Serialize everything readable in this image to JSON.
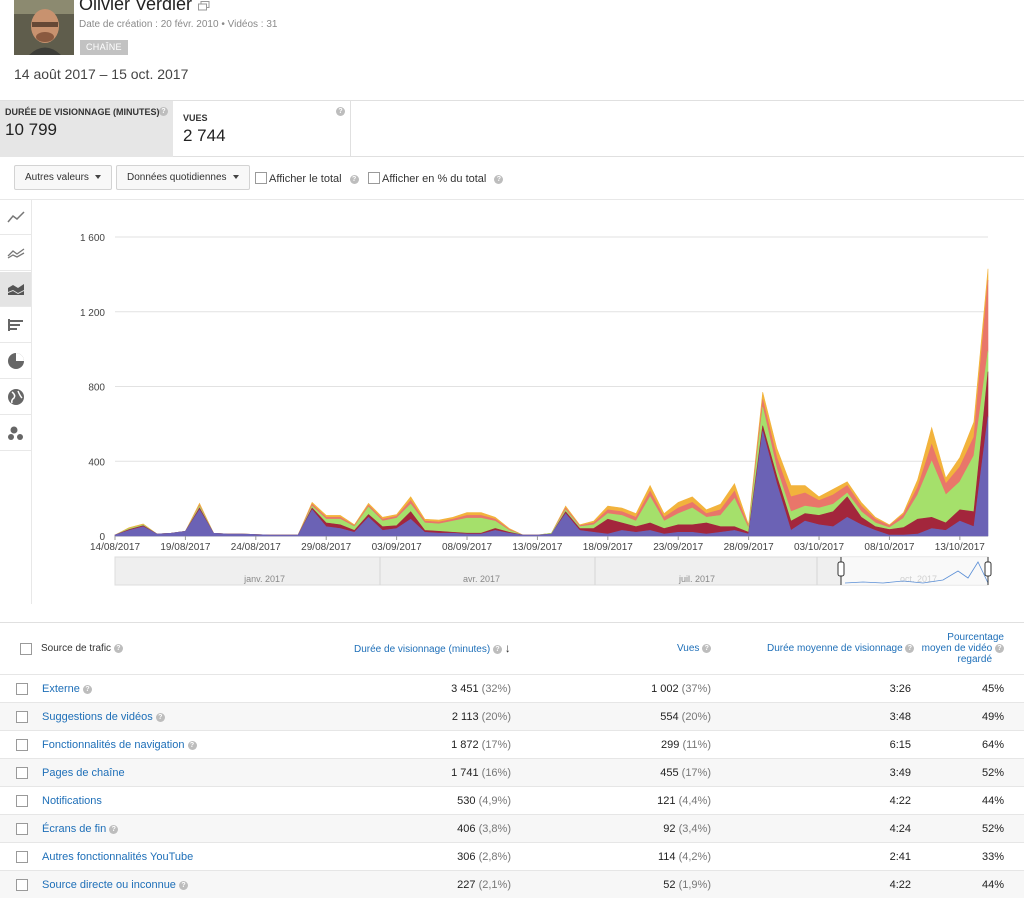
{
  "channel": {
    "name": "Olivier Verdier",
    "created": "Date de création : 20 févr. 2010",
    "videos": "Vidéos : 31",
    "badge": "CHAÎNE"
  },
  "date_range": "14 août 2017 – 15 oct. 2017",
  "metrics": [
    {
      "label": "DURÉE DE VISIONNAGE (MINUTES)",
      "value": "10 799",
      "selected": true
    },
    {
      "label": "VUES",
      "value": "2 744",
      "selected": false
    }
  ],
  "controls": {
    "other_values": "Autres valeurs",
    "daily_data": "Données quotidiennes",
    "show_total": "Afficher le total",
    "show_percent": "Afficher en % du total"
  },
  "chart_icons": [
    "line-chart-icon",
    "multiline-chart-icon",
    "stacked-area-icon",
    "bar-chart-icon",
    "pie-chart-icon",
    "map-icon",
    "bubble-chart-icon"
  ],
  "chart_data": {
    "type": "area",
    "stacked": true,
    "ylim": [
      0,
      1600
    ],
    "yticks": [
      "0",
      "400",
      "800",
      "1 200",
      "1 600"
    ],
    "xticks": [
      "14/08/2017",
      "19/08/2017",
      "24/08/2017",
      "29/08/2017",
      "03/09/2017",
      "08/09/2017",
      "13/09/2017",
      "18/09/2017",
      "23/09/2017",
      "28/09/2017",
      "03/10/2017",
      "08/10/2017",
      "13/10/2017"
    ],
    "x_start": "14/08/2017",
    "x_end": "15/10/2017",
    "colors": [
      "#6b62b5",
      "#a3263c",
      "#a5e06b",
      "#e9766a",
      "#f2b33c"
    ],
    "series": [
      {
        "values": [
          5,
          30,
          50,
          10,
          15,
          25,
          140,
          15,
          10,
          10,
          8,
          5,
          5,
          5,
          140,
          50,
          40,
          20,
          100,
          30,
          40,
          90,
          20,
          15,
          15,
          10,
          10,
          30,
          15,
          5,
          5,
          10,
          120,
          30,
          20,
          10,
          30,
          20,
          30,
          10,
          20,
          20,
          10,
          20,
          30,
          10,
          560,
          280,
          30,
          80,
          60,
          50,
          100,
          60,
          30,
          5,
          5,
          10,
          40,
          30,
          80,
          50,
          640
        ]
      },
      {
        "values": [
          0,
          5,
          5,
          0,
          0,
          0,
          10,
          0,
          0,
          0,
          0,
          0,
          0,
          0,
          10,
          20,
          20,
          10,
          15,
          20,
          15,
          40,
          10,
          10,
          5,
          5,
          5,
          10,
          5,
          0,
          0,
          0,
          10,
          10,
          20,
          80,
          40,
          30,
          40,
          30,
          40,
          40,
          60,
          30,
          20,
          10,
          30,
          40,
          50,
          40,
          50,
          80,
          110,
          40,
          20,
          30,
          40,
          80,
          60,
          40,
          60,
          80,
          240
        ]
      },
      {
        "values": [
          0,
          5,
          5,
          0,
          0,
          0,
          10,
          0,
          0,
          0,
          0,
          0,
          0,
          0,
          10,
          20,
          30,
          20,
          40,
          30,
          40,
          40,
          40,
          40,
          60,
          80,
          80,
          40,
          10,
          0,
          0,
          5,
          10,
          10,
          20,
          30,
          40,
          30,
          140,
          40,
          60,
          90,
          30,
          60,
          150,
          20,
          100,
          40,
          50,
          40,
          40,
          40,
          20,
          30,
          20,
          10,
          50,
          130,
          300,
          150,
          150,
          300,
          110
        ]
      },
      {
        "values": [
          0,
          0,
          0,
          0,
          0,
          0,
          5,
          0,
          0,
          0,
          0,
          0,
          0,
          0,
          10,
          10,
          10,
          5,
          10,
          10,
          10,
          20,
          10,
          10,
          10,
          15,
          15,
          10,
          5,
          0,
          0,
          0,
          10,
          5,
          10,
          20,
          20,
          20,
          30,
          20,
          30,
          30,
          20,
          30,
          40,
          10,
          40,
          60,
          80,
          70,
          40,
          50,
          40,
          30,
          20,
          10,
          20,
          40,
          90,
          60,
          80,
          100,
          380
        ]
      },
      {
        "values": [
          0,
          5,
          5,
          0,
          0,
          0,
          10,
          0,
          0,
          0,
          0,
          0,
          0,
          0,
          10,
          10,
          10,
          5,
          10,
          10,
          10,
          20,
          10,
          10,
          10,
          15,
          15,
          10,
          5,
          0,
          0,
          0,
          10,
          5,
          10,
          20,
          20,
          20,
          30,
          20,
          30,
          30,
          20,
          30,
          40,
          10,
          40,
          50,
          60,
          40,
          20,
          30,
          20,
          20,
          10,
          5,
          10,
          40,
          90,
          30,
          50,
          80,
          60
        ]
      }
    ],
    "navigator_labels": [
      "janv. 2017",
      "avr. 2017",
      "juil. 2017",
      "oct. 2017"
    ]
  },
  "table": {
    "headers": {
      "source": "Source de trafic",
      "watch": "Durée de visionnage (minutes)",
      "views": "Vues",
      "avg": "Durée moyenne de visionnage",
      "pct_line1": "Pourcentage",
      "pct_line2": "moyen de vidéo",
      "pct_line3": "regardé"
    },
    "rows": [
      {
        "source": "Externe",
        "help": true,
        "watch": "3 451",
        "watch_pct": "(32%)",
        "views": "1 002",
        "views_pct": "(37%)",
        "avg": "3:26",
        "pct": "45%"
      },
      {
        "source": "Suggestions de vidéos",
        "help": true,
        "watch": "2 113",
        "watch_pct": "(20%)",
        "views": "554",
        "views_pct": "(20%)",
        "avg": "3:48",
        "pct": "49%"
      },
      {
        "source": "Fonctionnalités de navigation",
        "help": true,
        "watch": "1 872",
        "watch_pct": "(17%)",
        "views": "299",
        "views_pct": "(11%)",
        "avg": "6:15",
        "pct": "64%"
      },
      {
        "source": "Pages de chaîne",
        "help": false,
        "watch": "1 741",
        "watch_pct": "(16%)",
        "views": "455",
        "views_pct": "(17%)",
        "avg": "3:49",
        "pct": "52%"
      },
      {
        "source": "Notifications",
        "help": false,
        "watch": "530",
        "watch_pct": "(4,9%)",
        "views": "121",
        "views_pct": "(4,4%)",
        "avg": "4:22",
        "pct": "44%"
      },
      {
        "source": "Écrans de fin",
        "help": true,
        "watch": "406",
        "watch_pct": "(3,8%)",
        "views": "92",
        "views_pct": "(3,4%)",
        "avg": "4:24",
        "pct": "52%"
      },
      {
        "source": "Autres fonctionnalités YouTube",
        "help": false,
        "watch": "306",
        "watch_pct": "(2,8%)",
        "views": "114",
        "views_pct": "(4,2%)",
        "avg": "2:41",
        "pct": "33%"
      },
      {
        "source": "Source directe ou inconnue",
        "help": true,
        "watch": "227",
        "watch_pct": "(2,1%)",
        "views": "52",
        "views_pct": "(1,9%)",
        "avg": "4:22",
        "pct": "44%"
      }
    ]
  }
}
